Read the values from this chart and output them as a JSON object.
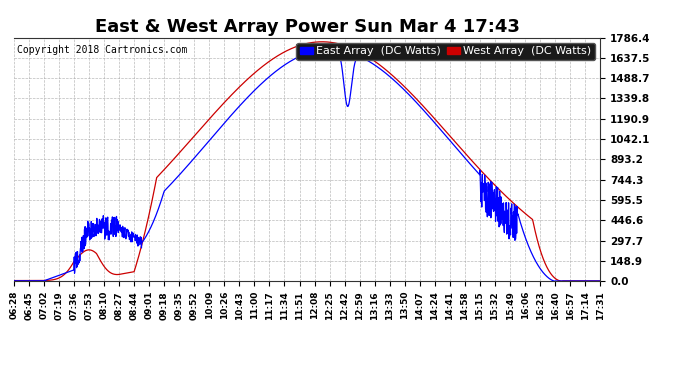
{
  "title": "East & West Array Power Sun Mar 4 17:43",
  "copyright": "Copyright 2018 Cartronics.com",
  "legend_east": "East Array  (DC Watts)",
  "legend_west": "West Array  (DC Watts)",
  "east_color": "#0000ff",
  "west_color": "#cc0000",
  "bg_color": "#ffffff",
  "plot_bg_color": "#ffffff",
  "grid_color": "#aaaaaa",
  "yticks": [
    0.0,
    148.9,
    297.7,
    446.6,
    595.5,
    744.3,
    893.2,
    1042.1,
    1190.9,
    1339.8,
    1488.7,
    1637.5,
    1786.4
  ],
  "ymax": 1786.4,
  "xtick_labels": [
    "06:28",
    "06:45",
    "07:02",
    "07:19",
    "07:36",
    "07:53",
    "08:10",
    "08:27",
    "08:44",
    "09:01",
    "09:18",
    "09:35",
    "09:52",
    "10:09",
    "10:26",
    "10:43",
    "11:00",
    "11:17",
    "11:34",
    "11:51",
    "12:08",
    "12:25",
    "12:42",
    "12:59",
    "13:16",
    "13:33",
    "13:50",
    "14:07",
    "14:24",
    "14:41",
    "14:58",
    "15:15",
    "15:32",
    "15:49",
    "16:06",
    "16:23",
    "16:40",
    "16:57",
    "17:14",
    "17:31"
  ],
  "title_fontsize": 13,
  "copyright_fontsize": 7,
  "legend_fontsize": 8,
  "tick_fontsize": 6.5,
  "ytick_fontsize": 7.5,
  "figwidth": 6.9,
  "figheight": 3.75,
  "dpi": 100
}
